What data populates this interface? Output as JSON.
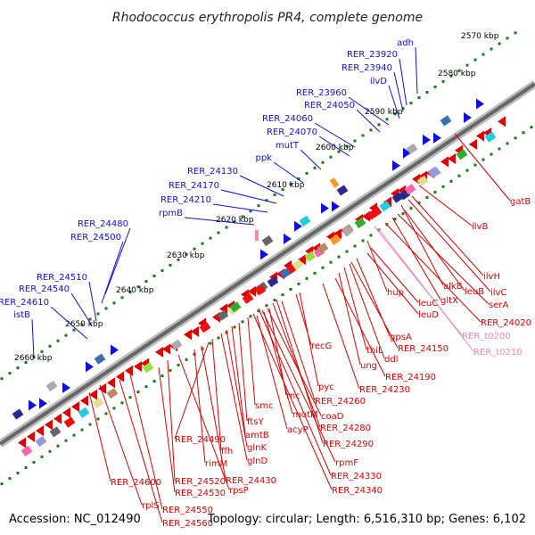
{
  "title": "Rhodococcus erythropolis PR4, complete genome",
  "footer": {
    "accession": "Accession: NC_012490",
    "summary": "Topology: circular; Length: 6,516,310 bp; Genes: 6,102"
  },
  "colors": {
    "forward": "#1010dd",
    "reverse": "#dd0000",
    "rna": "#ee88bb",
    "backbone": "#777777",
    "tick": "#1a7a1a"
  },
  "ticks": [
    "2570 kbp",
    "2580 kbp",
    "2590 kbp",
    "2600 kbp",
    "2610 kbp",
    "2620 kbp",
    "2630 kbp",
    "2640 kbp",
    "2650 kbp",
    "2660 kbp"
  ],
  "forward_labels": [
    "adh",
    "RER_23920",
    "RER_23940",
    "ilvD",
    "RER_23960",
    "RER_24050",
    "RER_24060",
    "RER_24070",
    "mutT",
    "ppk",
    "RER_24130",
    "RER_24170",
    "RER_24210",
    "rpmB",
    "RER_24480",
    "RER_24500",
    "RER_24510",
    "RER_24540",
    "RER_24610",
    "istB"
  ],
  "reverse_labels": [
    "gatB",
    "ilvB",
    "ilvH",
    "ilvC",
    "alkB",
    "leuB",
    "serA",
    "gltX",
    "RER_24020",
    "hup",
    "leuC",
    "leuD",
    "RER_t0200",
    "RER_t0210",
    "gpsA",
    "thiL",
    "ddl",
    "RER_24150",
    "ung",
    "recG",
    "RER_24190",
    "pyc",
    "RER_24230",
    "rnc",
    "RER_24260",
    "smc",
    "mutM",
    "coaD",
    "acyP",
    "RER_24280",
    "ftsY",
    "RER_24290",
    "amtB",
    "glnK",
    "glnD",
    "ffh",
    "RER_24490",
    "rimM",
    "RER_24430",
    "rplS",
    "RER_24520",
    "rpsP",
    "RER_24530",
    "RER_24600",
    "RER_24550",
    "RER_24560",
    "RER_24330",
    "rpmF",
    "RER_24340"
  ]
}
